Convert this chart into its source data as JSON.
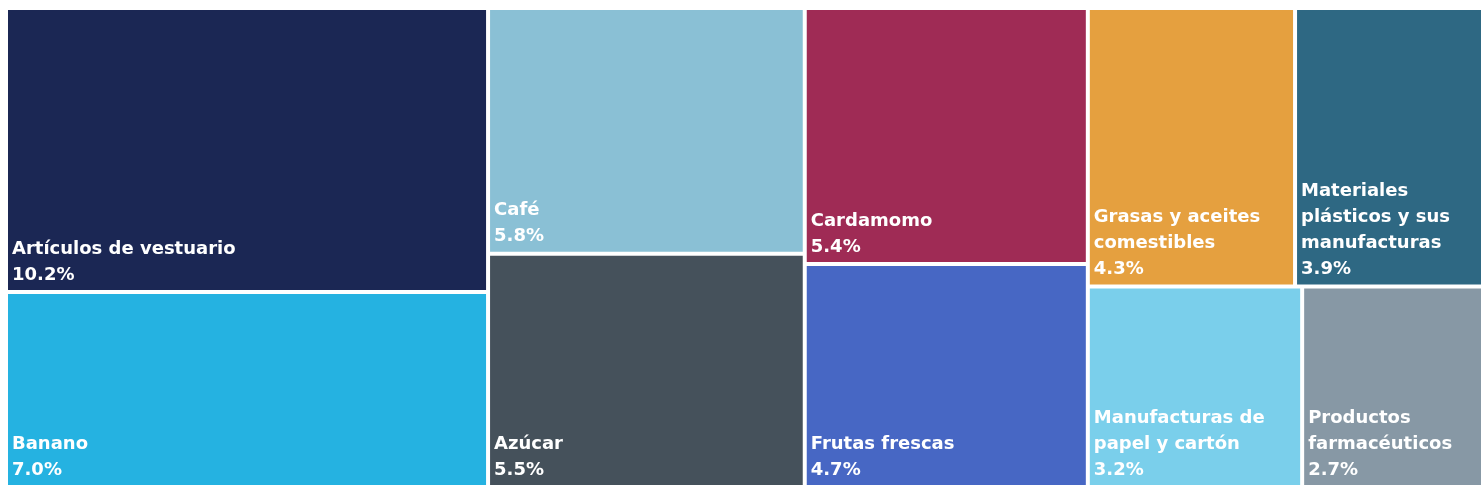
{
  "chart_data": {
    "type": "other",
    "categories": [
      "Artículos de vestuario",
      "Banano",
      "Café",
      "Azúcar",
      "Cardamomo",
      "Frutas frescas",
      "Grasas y aceites comestibles",
      "Materiales plásticos y sus manufacturas",
      "Manufacturas de papel y cartón",
      "Productos farmacéuticos"
    ],
    "values": [
      10.2,
      7.0,
      5.8,
      5.5,
      5.4,
      4.7,
      4.3,
      3.9,
      3.2,
      2.7
    ],
    "value_labels": [
      "10.2%",
      "7.0%",
      "5.8%",
      "5.5%",
      "5.4%",
      "4.7%",
      "4.3%",
      "3.9%",
      "3.2%",
      "2.7%"
    ],
    "colors": [
      "#1b2754",
      "#25b2e1",
      "#8ac0d5",
      "#45515b",
      "#9f2b55",
      "#4767c4",
      "#e5a03f",
      "#2e6883",
      "#7acfeb",
      "#8798a5"
    ]
  }
}
